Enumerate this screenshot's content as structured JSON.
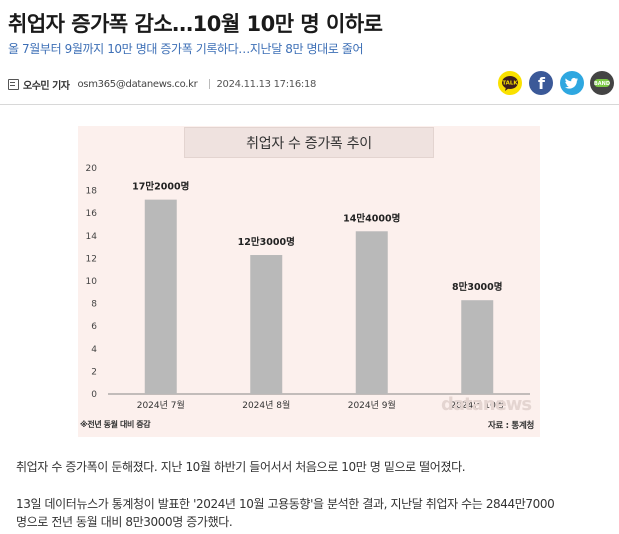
{
  "article": {
    "headline": "취업자 증가폭 감소…10월 10만 명 이하로",
    "subhead": "올 7월부터 9월까지 10만 명대 증가폭 기록하다…지난달 8만 명대로 줄어",
    "byline": {
      "reporter": "오수민 기자",
      "email": "osm365@datanews.co.kr",
      "date": "2024.11.13 17:16:18"
    },
    "share": {
      "kakao_label": "TALK",
      "facebook_label": "f",
      "band_label": "BAND"
    },
    "paragraphs": [
      "취업자 수 증가폭이 둔해졌다. 지난 10월 하반기 들어서서 처음으로 10만 명 밑으로 떨어졌다.",
      "13일 데이터뉴스가 통계청이 발표한 '2024년 10월 고용동향'을 분석한 결과, 지난달 취업자 수는 2844만7000",
      "명으로 전년 동월 대비 8만3000명 증가했다."
    ]
  },
  "infographic": {
    "note": "※전년 동월 대비 증감",
    "source": "자료 : 통계청",
    "watermark": "datanews"
  },
  "colors": {
    "subhead": "#3d6fb6",
    "bar": "#b9b9b9",
    "chart_bg": "#fcf0ed",
    "kakao": "#fae100",
    "facebook": "#3b5998",
    "twitter": "#2ea7e0",
    "band": "#444444"
  },
  "chart_data": {
    "type": "bar",
    "title": "취업자 수 증가폭 추이",
    "categories": [
      "2024년 7월",
      "2024년 8월",
      "2024년 9월",
      "2024년 10월"
    ],
    "values": [
      17.2,
      12.3,
      14.4,
      8.3
    ],
    "data_labels": [
      "17만2000명",
      "12만3000명",
      "14만4000명",
      "8만3000명"
    ],
    "yticks": [
      0,
      2,
      4,
      6,
      8,
      10,
      12,
      14,
      16,
      18,
      20
    ],
    "ylim": [
      0,
      20
    ],
    "xlabel": "",
    "ylabel": "",
    "grid": false,
    "legend": false
  }
}
